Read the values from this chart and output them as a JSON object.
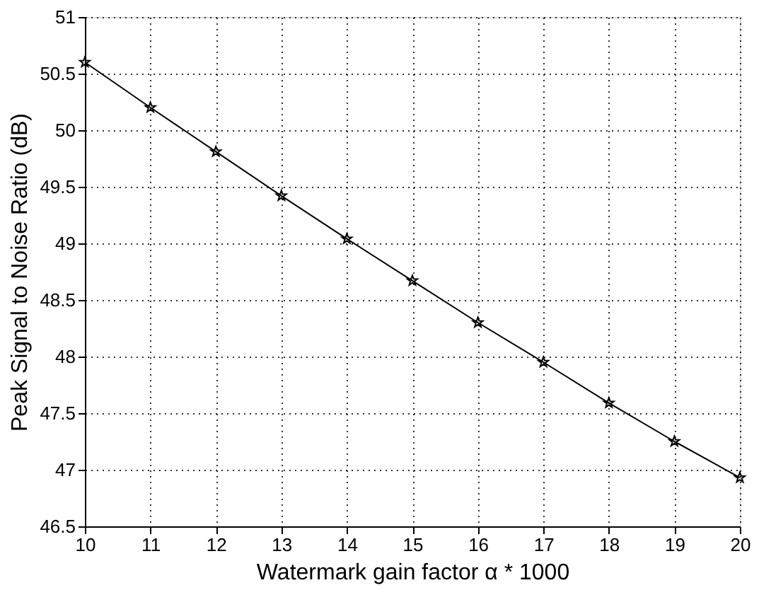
{
  "chart_data": {
    "type": "line",
    "xlabel": "Watermark gain factor α * 1000",
    "ylabel": "Peak Signal to Noise Ratio (dB)",
    "x": [
      10,
      11,
      12,
      13,
      14,
      15,
      16,
      17,
      18,
      19,
      20
    ],
    "series": [
      {
        "color": "#000000",
        "values": [
          50.6,
          50.2,
          49.81,
          49.42,
          49.04,
          48.67,
          48.3,
          47.95,
          47.59,
          47.25,
          46.93
        ]
      }
    ],
    "xlim": [
      10,
      20
    ],
    "ylim": [
      46.5,
      51
    ],
    "xticks": [
      10,
      11,
      12,
      13,
      14,
      15,
      16,
      17,
      18,
      19,
      20
    ],
    "yticks": [
      46.5,
      47,
      47.5,
      48,
      48.5,
      49,
      49.5,
      50,
      50.5,
      51
    ],
    "grid": true,
    "marker": "star",
    "line_style": "solid"
  }
}
